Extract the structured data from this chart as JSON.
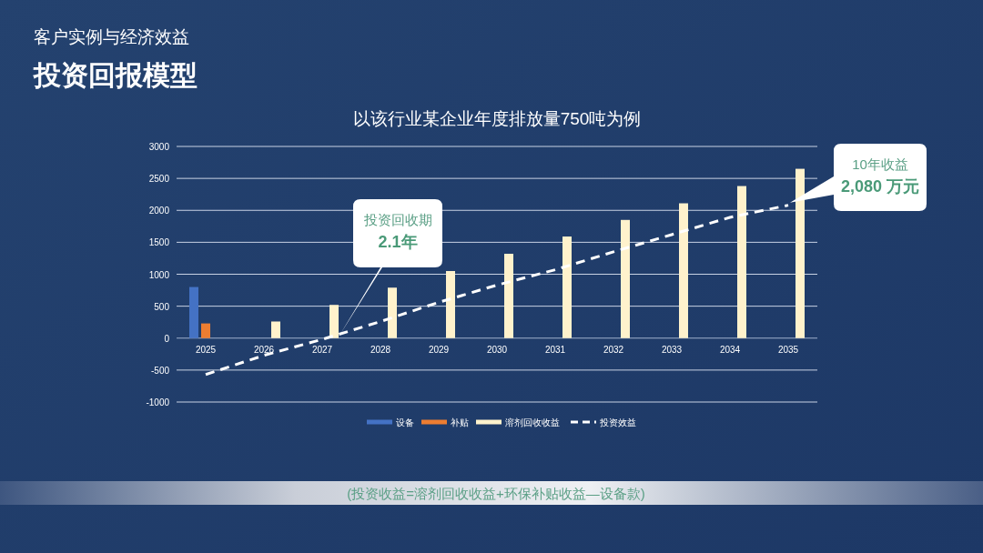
{
  "chart_data": {
    "type": "bar",
    "title": "投资回报模型",
    "subtitle": "以该行业某企业年度排放量750吨为例",
    "categories": [
      "2025",
      "2026",
      "2027",
      "2028",
      "2029",
      "2030",
      "2031",
      "2032",
      "2033",
      "2034",
      "2035"
    ],
    "series": [
      {
        "name": "设备",
        "color": "#4472c4",
        "values": [
          800,
          null,
          null,
          null,
          null,
          null,
          null,
          null,
          null,
          null,
          null
        ]
      },
      {
        "name": "补贴",
        "color": "#ed7d31",
        "values": [
          230,
          null,
          null,
          null,
          null,
          null,
          null,
          null,
          null,
          null,
          null
        ]
      },
      {
        "name": "溶剂回收收益",
        "color": "#fff2cc",
        "values": [
          null,
          260,
          520,
          790,
          1050,
          1320,
          1590,
          1850,
          2110,
          2380,
          2650
        ]
      },
      {
        "name": "投资效益",
        "type": "line",
        "color": "#ffffff",
        "line_style": "dashed",
        "values": [
          -570,
          -270,
          -20,
          260,
          560,
          830,
          1070,
          1350,
          1620,
          1890,
          2080
        ]
      }
    ],
    "ylim": [
      -1000,
      3000
    ],
    "yticks": [
      -1000,
      -500,
      0,
      500,
      1000,
      1500,
      2000,
      2500,
      3000
    ],
    "grid": "y",
    "legend": "bottom",
    "annotations": [
      "客户实例与经济效益",
      "投资回收期\n2.1年",
      "10年收益\n2,080 万元",
      "(投资收益=溶剂回收收益+环保补贴收益—设备款)"
    ]
  }
}
